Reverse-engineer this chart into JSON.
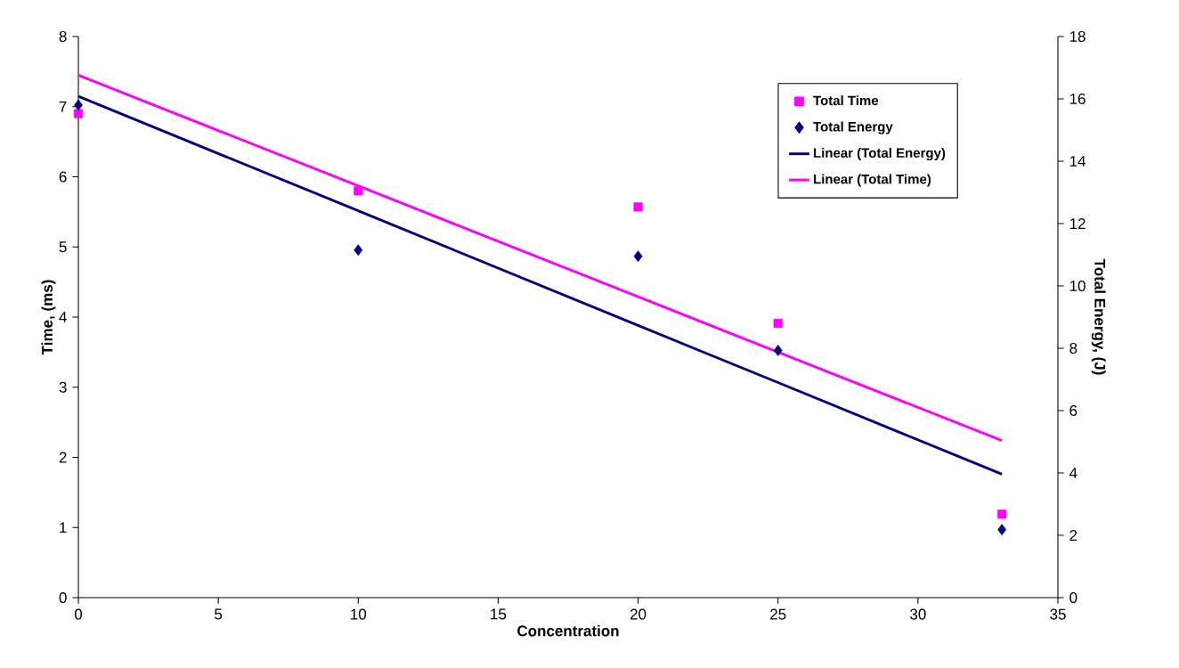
{
  "chart_data": {
    "type": "scatter",
    "xlabel": "Concentration",
    "ylabel": "Time, (ms)",
    "y2label": "Total Energy, (J)",
    "x": [
      0,
      10,
      20,
      25,
      33
    ],
    "series": [
      {
        "name": "Total Time",
        "color": "#ff00ff",
        "marker": "square",
        "values": [
          6.9,
          5.8,
          5.57,
          3.91,
          1.19
        ]
      },
      {
        "name": "Total Energy",
        "color": "#000080",
        "marker": "diamond",
        "axis": "y2",
        "values": [
          15.8,
          11.15,
          10.95,
          7.93,
          2.18
        ]
      },
      {
        "name": "Linear (Total Energy)",
        "type": "line",
        "color": "#000080",
        "marker": "none",
        "line_style": "solid",
        "axis": "y2",
        "values": [
          16.08,
          12.41,
          8.73,
          6.9,
          3.96
        ]
      },
      {
        "name": "Linear (Total Time)",
        "type": "line",
        "color": "#ff00ff",
        "marker": "none",
        "line_style": "solid",
        "values": [
          7.45,
          5.87,
          4.29,
          3.5,
          2.24
        ]
      }
    ],
    "xlim": [
      0,
      35
    ],
    "xticks": [
      0,
      5,
      10,
      15,
      20,
      25,
      30,
      35
    ],
    "ylim": [
      0,
      8
    ],
    "yticks": [
      0,
      1,
      2,
      3,
      4,
      5,
      6,
      7,
      8
    ],
    "y2lim": [
      0,
      18
    ],
    "y2ticks": [
      0,
      2,
      4,
      6,
      8,
      10,
      12,
      14,
      16,
      18
    ],
    "grid": false,
    "legend": "top right"
  }
}
